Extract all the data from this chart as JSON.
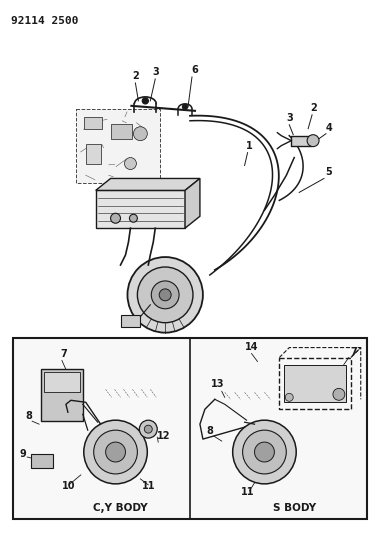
{
  "title_code": "92114 2500",
  "bg_color": "#ffffff",
  "lc": "#1a1a1a",
  "fig_width": 3.79,
  "fig_height": 5.33,
  "dpi": 100
}
